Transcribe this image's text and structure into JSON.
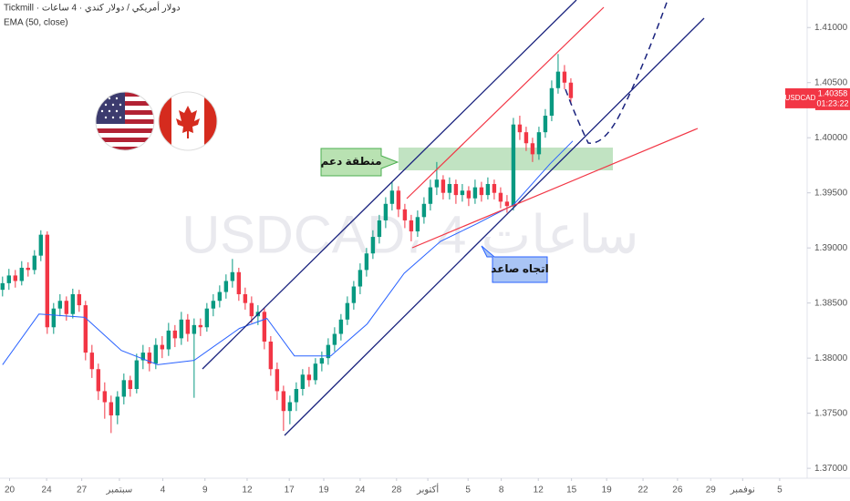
{
  "chart_data": {
    "type": "candlestick",
    "title": "Tickmill · دولار أمريكي / دولار كندي · 4 ساعات",
    "watermark": "USDCAD، 4 ساعات",
    "symbol": "USDCAD",
    "last_price": 1.40358,
    "countdown": "01:23:22",
    "up_color": "#089981",
    "down_color": "#f23645",
    "grid": false,
    "annotations": [
      "منطقة دعم",
      "اتجاه صاعد"
    ],
    "xlim": [
      -0.4,
      126
    ],
    "ylim": [
      1.3691,
      1.4125
    ],
    "yticks": [
      {
        "value": 1.37,
        "label": "1.37000"
      },
      {
        "value": 1.375,
        "label": "1.37500"
      },
      {
        "value": 1.38,
        "label": "1.38000"
      },
      {
        "value": 1.385,
        "label": "1.38500"
      },
      {
        "value": 1.39,
        "label": "1.39000"
      },
      {
        "value": 1.395,
        "label": "1.39500"
      },
      {
        "value": 1.4,
        "label": "1.40000"
      },
      {
        "value": 1.405,
        "label": "1.40500"
      },
      {
        "value": 1.41,
        "label": "1.41000"
      }
    ],
    "xticks": [
      {
        "value": 1.1,
        "label": "20"
      },
      {
        "value": 6.9,
        "label": "24"
      },
      {
        "value": 12.4,
        "label": "27"
      },
      {
        "value": 18.3,
        "label": "سبتمبر"
      },
      {
        "value": 25.1,
        "label": "4"
      },
      {
        "value": 31.7,
        "label": "9"
      },
      {
        "value": 38.3,
        "label": "12"
      },
      {
        "value": 44.9,
        "label": "17"
      },
      {
        "value": 50.3,
        "label": "19"
      },
      {
        "value": 56,
        "label": "24"
      },
      {
        "value": 61.7,
        "label": "28"
      },
      {
        "value": 66.6,
        "label": "أكتوبر"
      },
      {
        "value": 72.9,
        "label": "5"
      },
      {
        "value": 78.1,
        "label": "8"
      },
      {
        "value": 83.9,
        "label": "12"
      },
      {
        "value": 89.1,
        "label": "15"
      },
      {
        "value": 94.6,
        "label": "19"
      },
      {
        "value": 100.3,
        "label": "22"
      },
      {
        "value": 105.7,
        "label": "26"
      },
      {
        "value": 110.9,
        "label": "29"
      },
      {
        "value": 115.9,
        "label": "نوفمبر"
      },
      {
        "value": 121.7,
        "label": "5"
      }
    ],
    "candles": [
      [
        1.3862,
        1.3874,
        1.3856,
        1.3868
      ],
      [
        1.3868,
        1.3881,
        1.3862,
        1.3875
      ],
      [
        1.3875,
        1.388,
        1.3864,
        1.387
      ],
      [
        1.387,
        1.3888,
        1.3866,
        1.3882
      ],
      [
        1.3882,
        1.3887,
        1.3874,
        1.388
      ],
      [
        1.388,
        1.3898,
        1.3876,
        1.3893
      ],
      [
        1.3893,
        1.3916,
        1.3888,
        1.3912
      ],
      [
        1.3912,
        1.3915,
        1.3822,
        1.3828
      ],
      [
        1.3828,
        1.385,
        1.3822,
        1.3845
      ],
      [
        1.3845,
        1.3858,
        1.3838,
        1.3852
      ],
      [
        1.3852,
        1.3856,
        1.3834,
        1.384
      ],
      [
        1.384,
        1.3863,
        1.3836,
        1.3858
      ],
      [
        1.3858,
        1.3862,
        1.3842,
        1.3848
      ],
      [
        1.3848,
        1.3852,
        1.3798,
        1.3805
      ],
      [
        1.3805,
        1.3812,
        1.3782,
        1.379
      ],
      [
        1.379,
        1.3795,
        1.3762,
        1.377
      ],
      [
        1.377,
        1.3778,
        1.3745,
        1.376
      ],
      [
        1.376,
        1.3766,
        1.3732,
        1.3748
      ],
      [
        1.3748,
        1.377,
        1.374,
        1.3765
      ],
      [
        1.3765,
        1.3786,
        1.3758,
        1.378
      ],
      [
        1.378,
        1.3784,
        1.3765,
        1.3772
      ],
      [
        1.3772,
        1.3804,
        1.3768,
        1.3798
      ],
      [
        1.3798,
        1.3812,
        1.379,
        1.3805
      ],
      [
        1.3805,
        1.381,
        1.3788,
        1.3795
      ],
      [
        1.3795,
        1.3818,
        1.379,
        1.3812
      ],
      [
        1.3812,
        1.382,
        1.38,
        1.3808
      ],
      [
        1.3808,
        1.3832,
        1.3802,
        1.3825
      ],
      [
        1.3825,
        1.383,
        1.381,
        1.3818
      ],
      [
        1.3818,
        1.3842,
        1.3812,
        1.3835
      ],
      [
        1.3835,
        1.384,
        1.3815,
        1.3822
      ],
      [
        1.3822,
        1.3836,
        1.3764,
        1.383
      ],
      [
        1.383,
        1.3836,
        1.382,
        1.3828
      ],
      [
        1.3828,
        1.385,
        1.3824,
        1.3845
      ],
      [
        1.3845,
        1.3858,
        1.3838,
        1.3852
      ],
      [
        1.3852,
        1.3866,
        1.3846,
        1.386
      ],
      [
        1.386,
        1.3876,
        1.3854,
        1.387
      ],
      [
        1.387,
        1.389,
        1.3864,
        1.3878
      ],
      [
        1.3878,
        1.3882,
        1.3852,
        1.3858
      ],
      [
        1.3858,
        1.3864,
        1.3844,
        1.385
      ],
      [
        1.385,
        1.3856,
        1.3832,
        1.3838
      ],
      [
        1.3838,
        1.3848,
        1.383,
        1.3842
      ],
      [
        1.3842,
        1.3846,
        1.3808,
        1.3815
      ],
      [
        1.3815,
        1.382,
        1.3784,
        1.379
      ],
      [
        1.379,
        1.3796,
        1.3762,
        1.377
      ],
      [
        1.377,
        1.3775,
        1.3734,
        1.3752
      ],
      [
        1.3752,
        1.3766,
        1.374,
        1.376
      ],
      [
        1.376,
        1.3778,
        1.3752,
        1.3772
      ],
      [
        1.3772,
        1.379,
        1.3766,
        1.3785
      ],
      [
        1.3785,
        1.3792,
        1.3774,
        1.378
      ],
      [
        1.378,
        1.38,
        1.3776,
        1.3795
      ],
      [
        1.3795,
        1.3806,
        1.3788,
        1.38
      ],
      [
        1.38,
        1.3818,
        1.3794,
        1.3812
      ],
      [
        1.3812,
        1.3828,
        1.3806,
        1.3822
      ],
      [
        1.3822,
        1.384,
        1.3816,
        1.3835
      ],
      [
        1.3835,
        1.3856,
        1.383,
        1.385
      ],
      [
        1.385,
        1.387,
        1.3844,
        1.3865
      ],
      [
        1.3865,
        1.3886,
        1.3858,
        1.388
      ],
      [
        1.388,
        1.39,
        1.3874,
        1.3895
      ],
      [
        1.3895,
        1.3916,
        1.389,
        1.391
      ],
      [
        1.391,
        1.393,
        1.3904,
        1.3925
      ],
      [
        1.3925,
        1.3946,
        1.3918,
        1.394
      ],
      [
        1.394,
        1.396,
        1.3934,
        1.3952
      ],
      [
        1.3952,
        1.3956,
        1.3928,
        1.3935
      ],
      [
        1.3935,
        1.394,
        1.3918,
        1.3925
      ],
      [
        1.3925,
        1.393,
        1.3906,
        1.3915
      ],
      [
        1.3915,
        1.3934,
        1.391,
        1.3928
      ],
      [
        1.3928,
        1.3946,
        1.3922,
        1.394
      ],
      [
        1.394,
        1.3962,
        1.3934,
        1.3955
      ],
      [
        1.3955,
        1.3978,
        1.3948,
        1.3962
      ],
      [
        1.3962,
        1.3966,
        1.3944,
        1.395
      ],
      [
        1.395,
        1.3964,
        1.3944,
        1.3958
      ],
      [
        1.3958,
        1.3962,
        1.394,
        1.3948
      ],
      [
        1.3948,
        1.3958,
        1.3942,
        1.3952
      ],
      [
        1.3952,
        1.3956,
        1.3938,
        1.3945
      ],
      [
        1.3945,
        1.3962,
        1.394,
        1.3955
      ],
      [
        1.3955,
        1.396,
        1.3942,
        1.3948
      ],
      [
        1.3948,
        1.3964,
        1.3944,
        1.3958
      ],
      [
        1.3958,
        1.3962,
        1.3944,
        1.395
      ],
      [
        1.395,
        1.3955,
        1.3936,
        1.3942
      ],
      [
        1.3942,
        1.3948,
        1.3932,
        1.3938
      ],
      [
        1.3938,
        1.4018,
        1.3934,
        1.4012
      ],
      [
        1.4012,
        1.402,
        1.3998,
        1.4005
      ],
      [
        1.4005,
        1.401,
        1.3988,
        1.3995
      ],
      [
        1.3995,
        1.4,
        1.3978,
        1.3985
      ],
      [
        1.3985,
        1.401,
        1.398,
        1.4005
      ],
      [
        1.4005,
        1.4026,
        1.4,
        1.402
      ],
      [
        1.402,
        1.4052,
        1.4015,
        1.4045
      ],
      [
        1.4045,
        1.4076,
        1.404,
        1.406
      ],
      [
        1.406,
        1.4066,
        1.4044,
        1.405
      ],
      [
        1.405,
        1.4054,
        1.403,
        1.4036
      ]
    ],
    "ema": {
      "name": "EMA (50, close)",
      "color": "#2962ff",
      "x": [
        0,
        5.7,
        12.9,
        18.6,
        24.3,
        30,
        37.1,
        41.4,
        45.7,
        51.4,
        57.1,
        62.9,
        68.6,
        74.3,
        80,
        85.7,
        89.3
      ],
      "values": [
        1.3794,
        1.384,
        1.3837,
        1.3807,
        1.3794,
        1.3798,
        1.3827,
        1.3836,
        1.3802,
        1.3802,
        1.3831,
        1.3877,
        1.3906,
        1.3922,
        1.3939,
        1.3976,
        1.3997
      ]
    }
  }
}
